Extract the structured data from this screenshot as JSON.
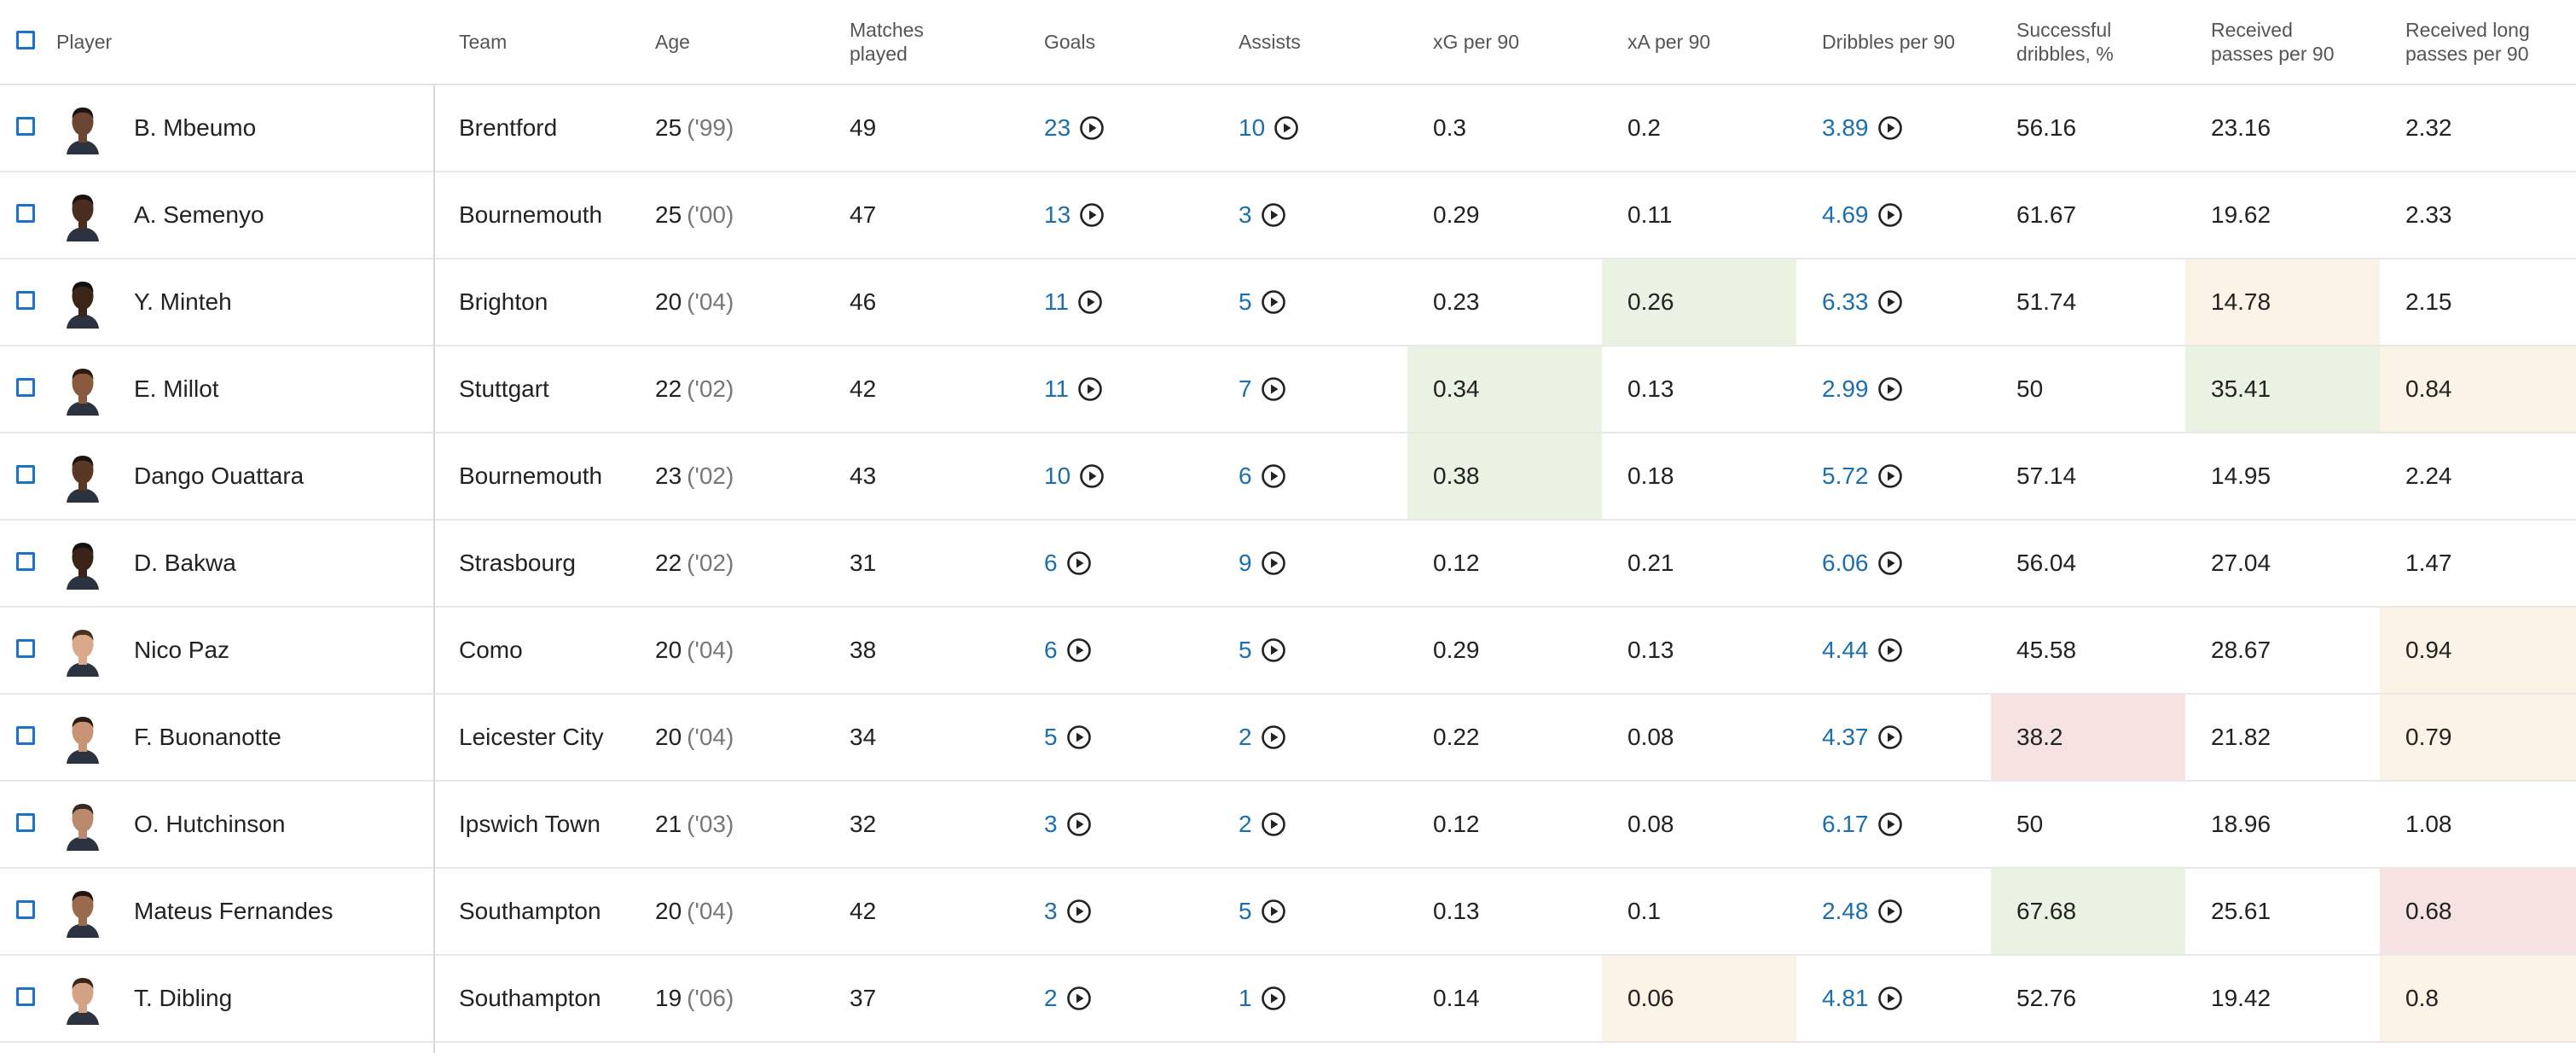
{
  "columns": {
    "player": "Player",
    "team": "Team",
    "age": "Age",
    "matches": "Matches\nplayed",
    "goals": "Goals",
    "assists": "Assists",
    "xg": "xG per 90",
    "xa": "xA per 90",
    "dribbles": "Dribbles per 90",
    "succ_dribbles": "Successful\ndribbles, %",
    "recv_passes": "Received\npasses per 90",
    "recv_long": "Received long\npasses per 90"
  },
  "colors": {
    "link": "#1b6fae",
    "checkbox": "#1a73c8",
    "highlight_green": "#eaf3e3",
    "highlight_cream": "#fbf3e6",
    "highlight_pink": "#f5e2e1"
  },
  "rows": [
    {
      "player": "B. Mbeumo",
      "team": "Brentford",
      "age": "25",
      "year": "('99)",
      "matches": "49",
      "goals": "23",
      "assists": "10",
      "xg": "0.3",
      "xa": "0.2",
      "dribbles": "3.89",
      "succ": "56.16",
      "recv": "23.16",
      "long": "2.32",
      "hl": {}
    },
    {
      "player": "A. Semenyo",
      "team": "Bournemouth",
      "age": "25",
      "year": "('00)",
      "matches": "47",
      "goals": "13",
      "assists": "3",
      "xg": "0.29",
      "xa": "0.11",
      "dribbles": "4.69",
      "succ": "61.67",
      "recv": "19.62",
      "long": "2.33",
      "hl": {}
    },
    {
      "player": "Y. Minteh",
      "team": "Brighton",
      "age": "20",
      "year": "('04)",
      "matches": "46",
      "goals": "11",
      "assists": "5",
      "xg": "0.23",
      "xa": "0.26",
      "dribbles": "6.33",
      "succ": "51.74",
      "recv": "14.78",
      "long": "2.15",
      "hl": {
        "xa": "green",
        "recv": "cream"
      }
    },
    {
      "player": "E. Millot",
      "team": "Stuttgart",
      "age": "22",
      "year": "('02)",
      "matches": "42",
      "goals": "11",
      "assists": "7",
      "xg": "0.34",
      "xa": "0.13",
      "dribbles": "2.99",
      "succ": "50",
      "recv": "35.41",
      "long": "0.84",
      "hl": {
        "xg": "green",
        "recv": "green",
        "long": "cream"
      }
    },
    {
      "player": "Dango Ouattara",
      "team": "Bournemouth",
      "age": "23",
      "year": "('02)",
      "matches": "43",
      "goals": "10",
      "assists": "6",
      "xg": "0.38",
      "xa": "0.18",
      "dribbles": "5.72",
      "succ": "57.14",
      "recv": "14.95",
      "long": "2.24",
      "hl": {
        "xg": "green"
      }
    },
    {
      "player": "D. Bakwa",
      "team": "Strasbourg",
      "age": "22",
      "year": "('02)",
      "matches": "31",
      "goals": "6",
      "assists": "9",
      "xg": "0.12",
      "xa": "0.21",
      "dribbles": "6.06",
      "succ": "56.04",
      "recv": "27.04",
      "long": "1.47",
      "hl": {}
    },
    {
      "player": "Nico Paz",
      "team": "Como",
      "age": "20",
      "year": "('04)",
      "matches": "38",
      "goals": "6",
      "assists": "5",
      "xg": "0.29",
      "xa": "0.13",
      "dribbles": "4.44",
      "succ": "45.58",
      "recv": "28.67",
      "long": "0.94",
      "hl": {
        "long": "cream"
      }
    },
    {
      "player": "F. Buonanotte",
      "team": "Leicester City",
      "age": "20",
      "year": "('04)",
      "matches": "34",
      "goals": "5",
      "assists": "2",
      "xg": "0.22",
      "xa": "0.08",
      "dribbles": "4.37",
      "succ": "38.2",
      "recv": "21.82",
      "long": "0.79",
      "hl": {
        "succ": "pink",
        "long": "cream"
      }
    },
    {
      "player": "O. Hutchinson",
      "team": "Ipswich Town",
      "age": "21",
      "year": "('03)",
      "matches": "32",
      "goals": "3",
      "assists": "2",
      "xg": "0.12",
      "xa": "0.08",
      "dribbles": "6.17",
      "succ": "50",
      "recv": "18.96",
      "long": "1.08",
      "hl": {}
    },
    {
      "player": "Mateus Fernandes",
      "team": "Southampton",
      "age": "20",
      "year": "('04)",
      "matches": "42",
      "goals": "3",
      "assists": "5",
      "xg": "0.13",
      "xa": "0.1",
      "dribbles": "2.48",
      "succ": "67.68",
      "recv": "25.61",
      "long": "0.68",
      "hl": {
        "succ": "green",
        "long": "pink"
      }
    },
    {
      "player": "T. Dibling",
      "team": "Southampton",
      "age": "19",
      "year": "('06)",
      "matches": "37",
      "goals": "2",
      "assists": "1",
      "xg": "0.14",
      "xa": "0.06",
      "dribbles": "4.81",
      "succ": "52.76",
      "recv": "19.42",
      "long": "0.8",
      "hl": {
        "xa": "cream",
        "long": "cream"
      }
    }
  ]
}
